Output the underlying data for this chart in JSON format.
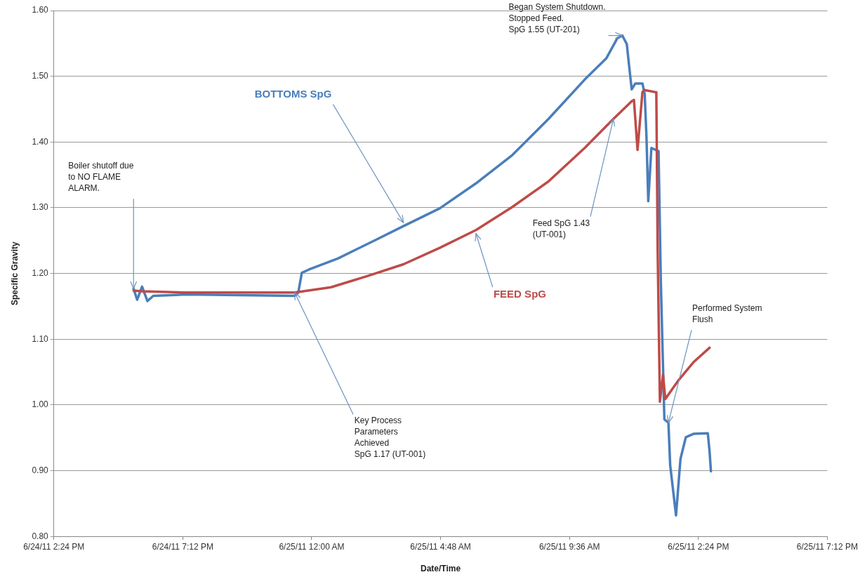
{
  "chart_data": {
    "type": "line",
    "xlabel": "Date/Time",
    "ylabel": "Specific Gravity",
    "xlim": [
      "--06-24T14:24",
      "--06-25T19:12"
    ],
    "xticks": [
      {
        "value": "--06-24T14:24",
        "label": "6/24/11 2:24 PM"
      },
      {
        "value": "--06-24T19:12",
        "label": "6/24/11 7:12 PM"
      },
      {
        "value": "--06-25T00:00",
        "label": "6/25/11 12:00 AM"
      },
      {
        "value": "--06-25T04:48",
        "label": "6/25/11 4:48 AM"
      },
      {
        "value": "--06-25T09:36",
        "label": "6/25/11 9:36 AM"
      },
      {
        "value": "--06-25T14:24",
        "label": "6/25/11 2:24 PM"
      },
      {
        "value": "--06-25T19:12",
        "label": "6/25/11 7:12 PM"
      }
    ],
    "ylim": [
      0.8,
      1.6
    ],
    "yticks": [
      {
        "value": 0.8,
        "label": "0.80"
      },
      {
        "value": 0.9,
        "label": "0.90"
      },
      {
        "value": 1.0,
        "label": "1.00"
      },
      {
        "value": 1.1,
        "label": "1.10"
      },
      {
        "value": 1.2,
        "label": "1.20"
      },
      {
        "value": 1.3,
        "label": "1.30"
      },
      {
        "value": 1.4,
        "label": "1.40"
      },
      {
        "value": 1.5,
        "label": "1.50"
      },
      {
        "value": 1.6,
        "label": "1.60"
      }
    ],
    "grid": "y",
    "legend": false,
    "marker": "none",
    "line_style": "solid",
    "series": [
      {
        "name": "BOTTOMS SpG",
        "color": "#4a7ebb",
        "x": [
          "--06-24T17:22",
          "--06-24T17:30",
          "--06-24T17:41",
          "--06-24T17:53",
          "--06-24T18:06",
          "--06-24T19:19",
          "--06-24T23:22",
          "--06-24T23:30",
          "--06-24T23:38",
          "--06-24T23:54",
          "--06-25T00:59",
          "--06-25T02:20",
          "--06-25T03:25",
          "--06-25T04:46",
          "--06-25T06:07",
          "--06-25T07:28",
          "--06-25T08:49",
          "--06-25T10:10",
          "--06-25T10:58",
          "--06-25T11:23",
          "--06-25T11:34",
          "--06-25T11:44",
          "--06-25T11:50",
          "--06-25T11:55",
          "--06-25T12:03",
          "--06-25T12:19",
          "--06-25T12:24",
          "--06-25T12:28",
          "--06-25T12:32",
          "--06-25T12:39",
          "--06-25T12:55",
          "--06-25T13:00",
          "--06-25T13:08",
          "--06-25T13:17",
          "--06-25T13:21",
          "--06-25T13:34",
          "--06-25T13:44",
          "--06-25T13:56",
          "--06-25T14:13",
          "--06-25T14:45",
          "--06-25T14:49",
          "--06-25T14:52"
        ],
        "values": [
          1.177,
          1.16,
          1.18,
          1.158,
          1.166,
          1.168,
          1.166,
          1.171,
          1.201,
          1.206,
          1.223,
          1.25,
          1.272,
          1.299,
          1.337,
          1.38,
          1.435,
          1.495,
          1.527,
          1.558,
          1.562,
          1.549,
          1.511,
          1.48,
          1.489,
          1.489,
          1.473,
          1.408,
          1.31,
          1.391,
          1.386,
          1.19,
          0.978,
          0.973,
          0.908,
          0.832,
          0.918,
          0.951,
          0.956,
          0.957,
          0.929,
          0.899
        ]
      },
      {
        "name": "FEED SpG",
        "color": "#be4b48",
        "x": [
          "--06-24T17:22",
          "--06-24T17:41",
          "--06-24T19:19",
          "--06-24T23:22",
          "--06-25T00:43",
          "--06-25T02:04",
          "--06-25T03:25",
          "--06-25T04:46",
          "--06-25T06:07",
          "--06-25T07:28",
          "--06-25T08:49",
          "--06-25T10:10",
          "--06-25T11:14",
          "--06-25T11:55",
          "--06-25T12:00",
          "--06-25T12:08",
          "--06-25T12:19",
          "--06-25T12:23",
          "--06-25T12:47",
          "--06-25T12:50",
          "--06-25T12:53",
          "--06-25T12:58",
          "--06-25T13:05",
          "--06-25T13:10",
          "--06-25T13:40",
          "--06-25T14:13",
          "--06-25T14:49"
        ],
        "values": [
          1.174,
          1.173,
          1.171,
          1.171,
          1.179,
          1.196,
          1.214,
          1.239,
          1.266,
          1.301,
          1.34,
          1.391,
          1.435,
          1.462,
          1.464,
          1.388,
          1.476,
          1.479,
          1.476,
          1.476,
          1.234,
          1.005,
          1.046,
          1.009,
          1.038,
          1.065,
          1.087
        ]
      }
    ],
    "annotations": [
      {
        "text": "Boiler shutoff due\nto NO FLAME\nALARM.",
        "x": "--06-24T17:22",
        "y": 1.177
      },
      {
        "text": "Key Process\nParameters\nAchieved\nSpG 1.17 (UT-001)",
        "x": "--06-24T23:22",
        "y": 1.171
      },
      {
        "text": "Began System Shutdown.\nStopped Feed.\nSpG 1.55 (UT-201)",
        "x": "--06-25T11:34",
        "y": 1.562
      },
      {
        "text": "Feed SpG 1.43\n(UT-001)",
        "x": "--06-25T11:14",
        "y": 1.435
      },
      {
        "text": "Performed System\nFlush",
        "x": "--06-25T13:17",
        "y": 0.973
      }
    ]
  }
}
